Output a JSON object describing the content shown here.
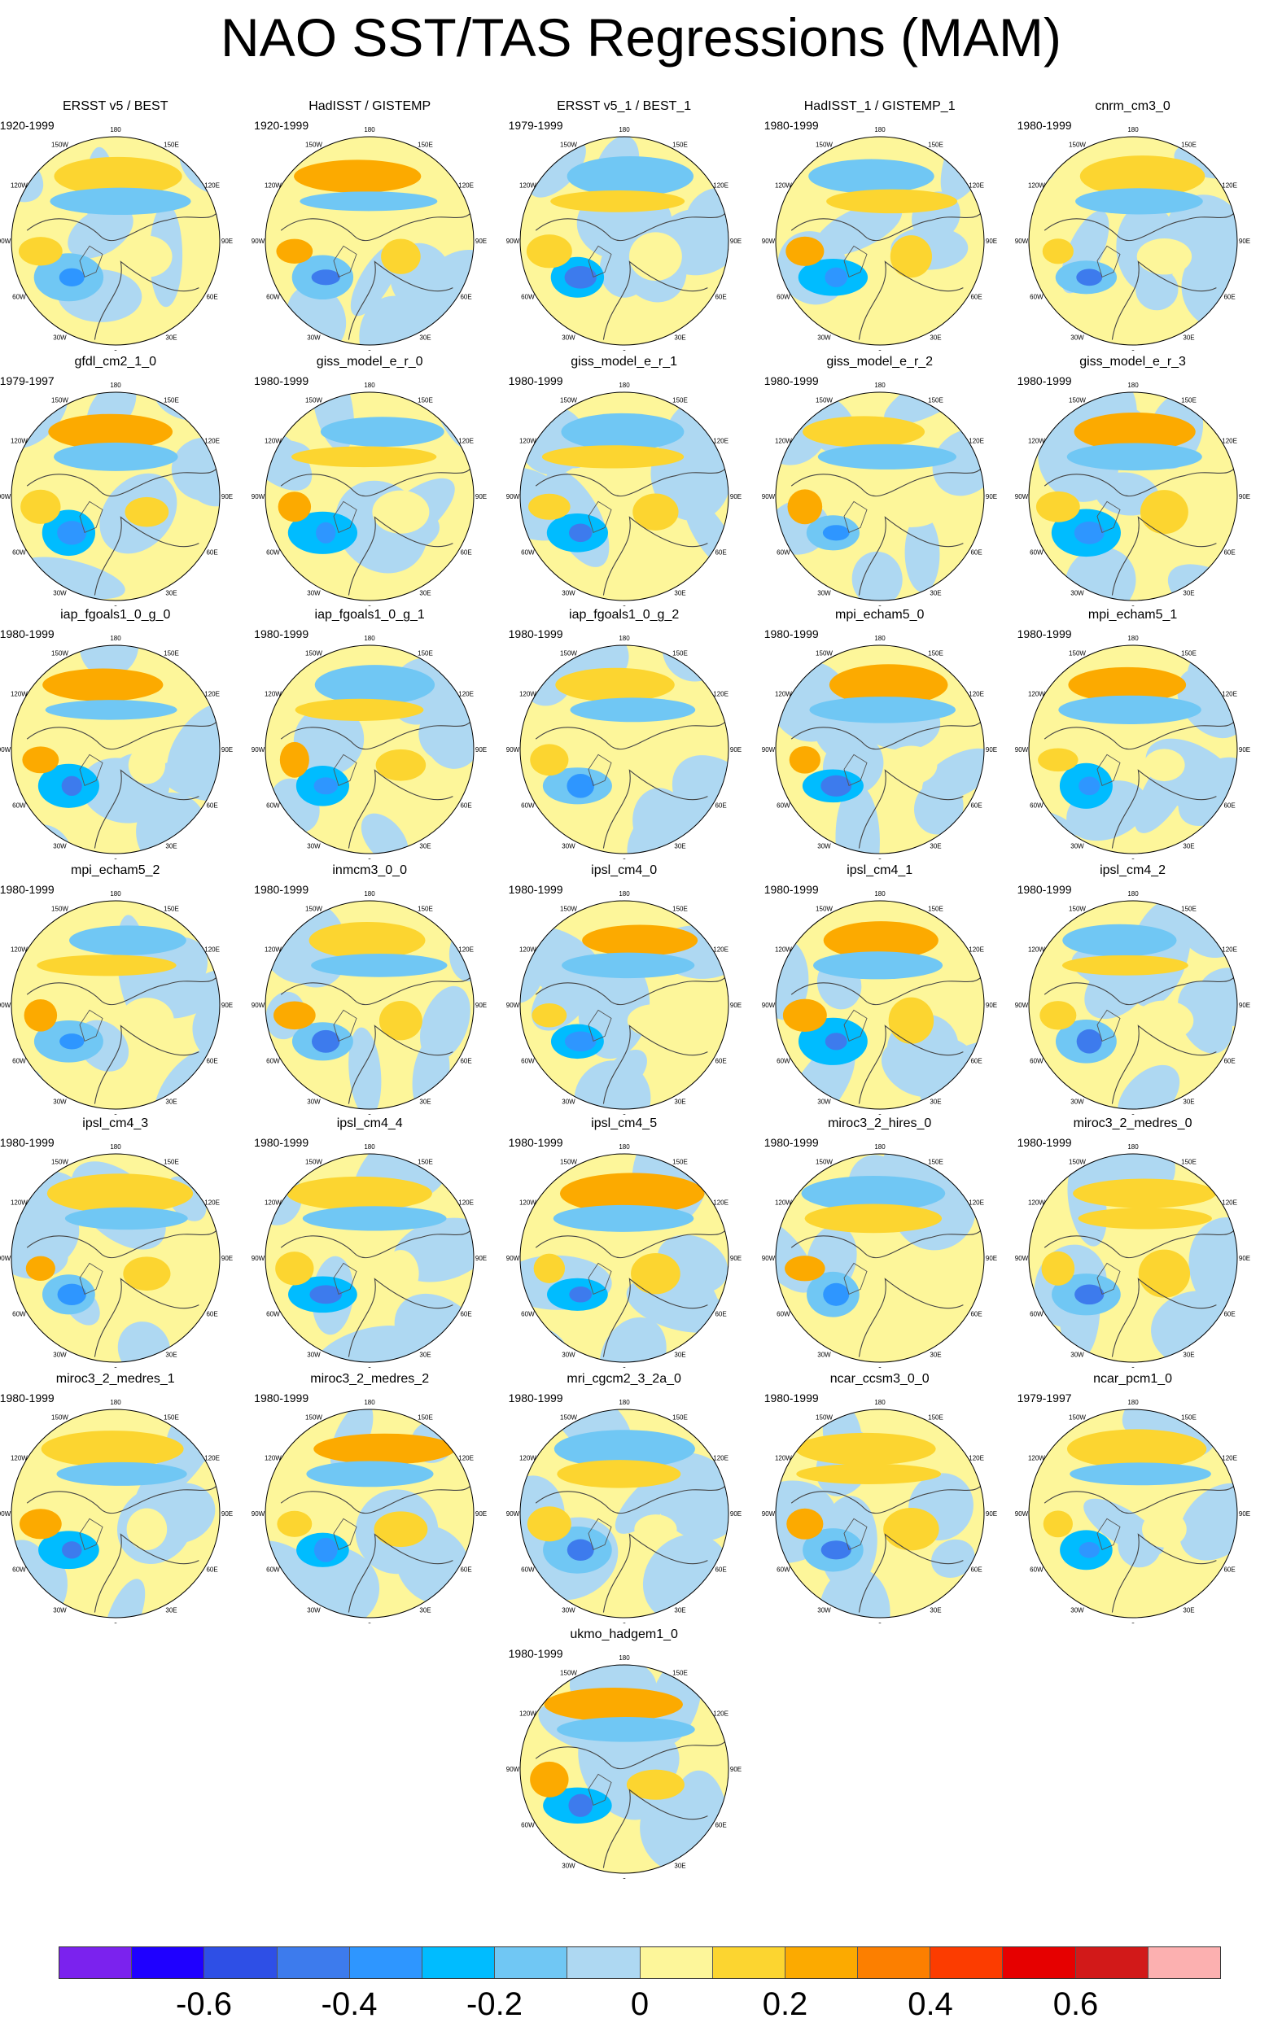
{
  "title": "NAO SST/TAS Regressions (MAM)",
  "lon_labels": [
    "180",
    "150E",
    "120E",
    "90E",
    "60E",
    "30E",
    "0",
    "30W",
    "60W",
    "90W",
    "120W",
    "150W"
  ],
  "panels": [
    {
      "name": "ERSST v5 / BEST",
      "period": "1920-1999",
      "pattern": 1
    },
    {
      "name": "HadISST / GISTEMP",
      "period": "1920-1999",
      "pattern": 2
    },
    {
      "name": "ERSST v5_1 / BEST_1",
      "period": "1979-1999",
      "pattern": 3
    },
    {
      "name": "HadISST_1 / GISTEMP_1",
      "period": "1980-1999",
      "pattern": 4
    },
    {
      "name": "cnrm_cm3_0",
      "period": "1980-1999",
      "pattern": 5
    },
    {
      "name": "gfdl_cm2_1_0",
      "period": "1979-1997",
      "pattern": 6
    },
    {
      "name": "giss_model_e_r_0",
      "period": "1980-1999",
      "pattern": 7
    },
    {
      "name": "giss_model_e_r_1",
      "period": "1980-1999",
      "pattern": 8
    },
    {
      "name": "giss_model_e_r_2",
      "period": "1980-1999",
      "pattern": 9
    },
    {
      "name": "giss_model_e_r_3",
      "period": "1980-1999",
      "pattern": 10
    },
    {
      "name": "iap_fgoals1_0_g_0",
      "period": "1980-1999",
      "pattern": 11
    },
    {
      "name": "iap_fgoals1_0_g_1",
      "period": "1980-1999",
      "pattern": 12
    },
    {
      "name": "iap_fgoals1_0_g_2",
      "period": "1980-1999",
      "pattern": 13
    },
    {
      "name": "mpi_echam5_0",
      "period": "1980-1999",
      "pattern": 14
    },
    {
      "name": "mpi_echam5_1",
      "period": "1980-1999",
      "pattern": 15
    },
    {
      "name": "mpi_echam5_2",
      "period": "1980-1999",
      "pattern": 16
    },
    {
      "name": "inmcm3_0_0",
      "period": "1980-1999",
      "pattern": 17
    },
    {
      "name": "ipsl_cm4_0",
      "period": "1980-1999",
      "pattern": 18
    },
    {
      "name": "ipsl_cm4_1",
      "period": "1980-1999",
      "pattern": 19
    },
    {
      "name": "ipsl_cm4_2",
      "period": "1980-1999",
      "pattern": 20
    },
    {
      "name": "ipsl_cm4_3",
      "period": "1980-1999",
      "pattern": 21
    },
    {
      "name": "ipsl_cm4_4",
      "period": "1980-1999",
      "pattern": 22
    },
    {
      "name": "ipsl_cm4_5",
      "period": "1980-1999",
      "pattern": 23
    },
    {
      "name": "miroc3_2_hires_0",
      "period": "1980-1999",
      "pattern": 24
    },
    {
      "name": "miroc3_2_medres_0",
      "period": "1980-1999",
      "pattern": 25
    },
    {
      "name": "miroc3_2_medres_1",
      "period": "1980-1999",
      "pattern": 26
    },
    {
      "name": "miroc3_2_medres_2",
      "period": "1980-1999",
      "pattern": 27
    },
    {
      "name": "mri_cgcm2_3_2a_0",
      "period": "1980-1999",
      "pattern": 28
    },
    {
      "name": "ncar_ccsm3_0_0",
      "period": "1980-1999",
      "pattern": 29
    },
    {
      "name": "ncar_pcm1_0",
      "period": "1979-1997",
      "pattern": 30
    },
    {
      "name": "ukmo_hadgem1_0",
      "period": "1980-1999",
      "pattern": 31
    }
  ],
  "colorbar": {
    "colors": [
      "#7b22ee",
      "#1f00ff",
      "#2e4fe6",
      "#3d7bed",
      "#2e96ff",
      "#00bcff",
      "#70c7f4",
      "#aed8f2",
      "#fdf69a",
      "#fcd530",
      "#fcaa00",
      "#fc7f00",
      "#fc3c00",
      "#e60000",
      "#d21919",
      "#fcb0b0"
    ],
    "labels": [
      "-0.6",
      "-0.4",
      "-0.2",
      "0",
      "0.2",
      "0.4",
      "0.6"
    ]
  }
}
